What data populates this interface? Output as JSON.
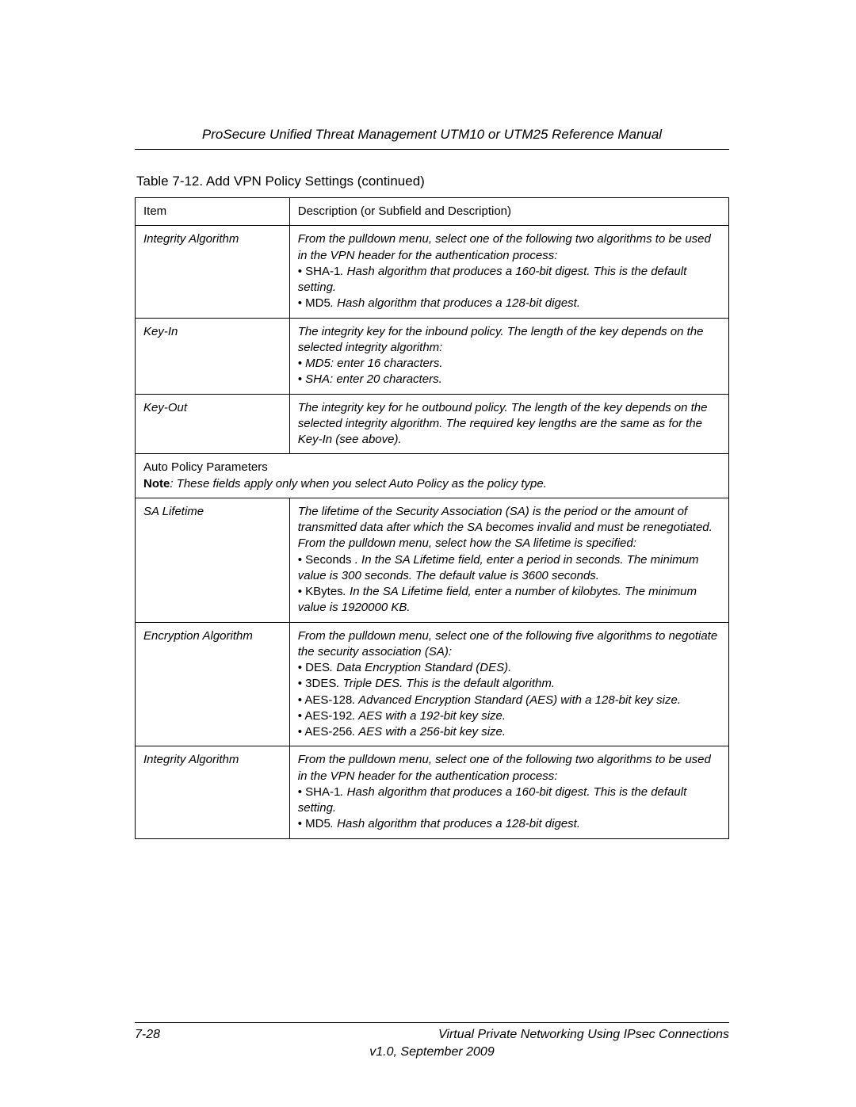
{
  "header": {
    "title": "ProSecure Unified Threat Management UTM10 or UTM25 Reference Manual"
  },
  "table": {
    "caption": "Table 7-12. Add VPN Policy Settings (continued)",
    "columns": {
      "c1": "Item",
      "c2": "Description (or Subfield and Description)"
    },
    "rows": {
      "r1": {
        "item": "Integrity Algorithm",
        "desc_i1": "From the pulldown menu, select one of the following two algorithms to be used in the VPN header for the authentication process:",
        "b1_label": "SHA-1",
        "b1_text": ". Hash algorithm that produces a 160-bit digest. This is the default setting.",
        "b2_label": "MD5",
        "b2_text": ". Hash algorithm that produces a 128-bit digest."
      },
      "r2": {
        "item": "Key-In",
        "desc_i1": "The integrity key for the inbound policy. The length of the key depends on the selected integrity algorithm:",
        "li1": "• MD5: enter 16 characters.",
        "li2": "• SHA: enter 20 characters."
      },
      "r3": {
        "item": "Key-Out",
        "desc": "The integrity key for he outbound policy. The length of the key depends on the selected integrity algorithm. The required key lengths are the same as for the Key-In (see above)."
      },
      "section": {
        "title": "Auto Policy Parameters",
        "note_label": "Note",
        "note_text": ": These fields apply only when you select Auto Policy as the policy type."
      },
      "r4": {
        "item": "SA Lifetime",
        "desc_i1": "The lifetime of the Security Association (SA) is the period or the amount of transmitted data after which the SA becomes invalid and must be renegotiated. From the pulldown menu, select how the SA lifetime is specified:",
        "b1_label": "Seconds",
        "b1_text": " . In the SA Lifetime field, enter a period in seconds. The minimum value is 300 seconds. The default value is 3600 seconds.",
        "b2_label": "KBytes",
        "b2_text": ". In the SA Lifetime field, enter a number of kilobytes. The minimum value is 1920000 KB."
      },
      "r5": {
        "item": "Encryption Algorithm",
        "desc_i1": "From the pulldown menu, select one of the following five algorithms to negotiate the security association (SA):",
        "b1_label": "DES",
        "b1_text": ". Data Encryption Standard (DES).",
        "b2_label": "3DES",
        "b2_text": ". Triple DES. This is the default algorithm.",
        "b3_label": "AES-128",
        "b3_text": ". Advanced Encryption Standard (AES) with a 128-bit key size.",
        "b4_label": "AES-192",
        "b4_text": ". AES with a 192-bit key size.",
        "b5_label": "AES-256",
        "b5_text": ". AES with a 256-bit key size."
      },
      "r6": {
        "item": "Integrity Algorithm",
        "desc_i1": "From the pulldown menu, select one of the following two algorithms to be used in the VPN header for the authentication process:",
        "b1_label": "SHA-1",
        "b1_text": ". Hash algorithm that produces a 160-bit digest. This is the default setting.",
        "b2_label": "MD5",
        "b2_text": ". Hash algorithm that produces a 128-bit digest."
      }
    }
  },
  "footer": {
    "page_no": "7-28",
    "chapter": "Virtual Private Networking Using IPsec Connections",
    "version": "v1.0, September 2009"
  },
  "colors": {
    "text": "#000000",
    "background": "#ffffff",
    "border": "#000000"
  }
}
